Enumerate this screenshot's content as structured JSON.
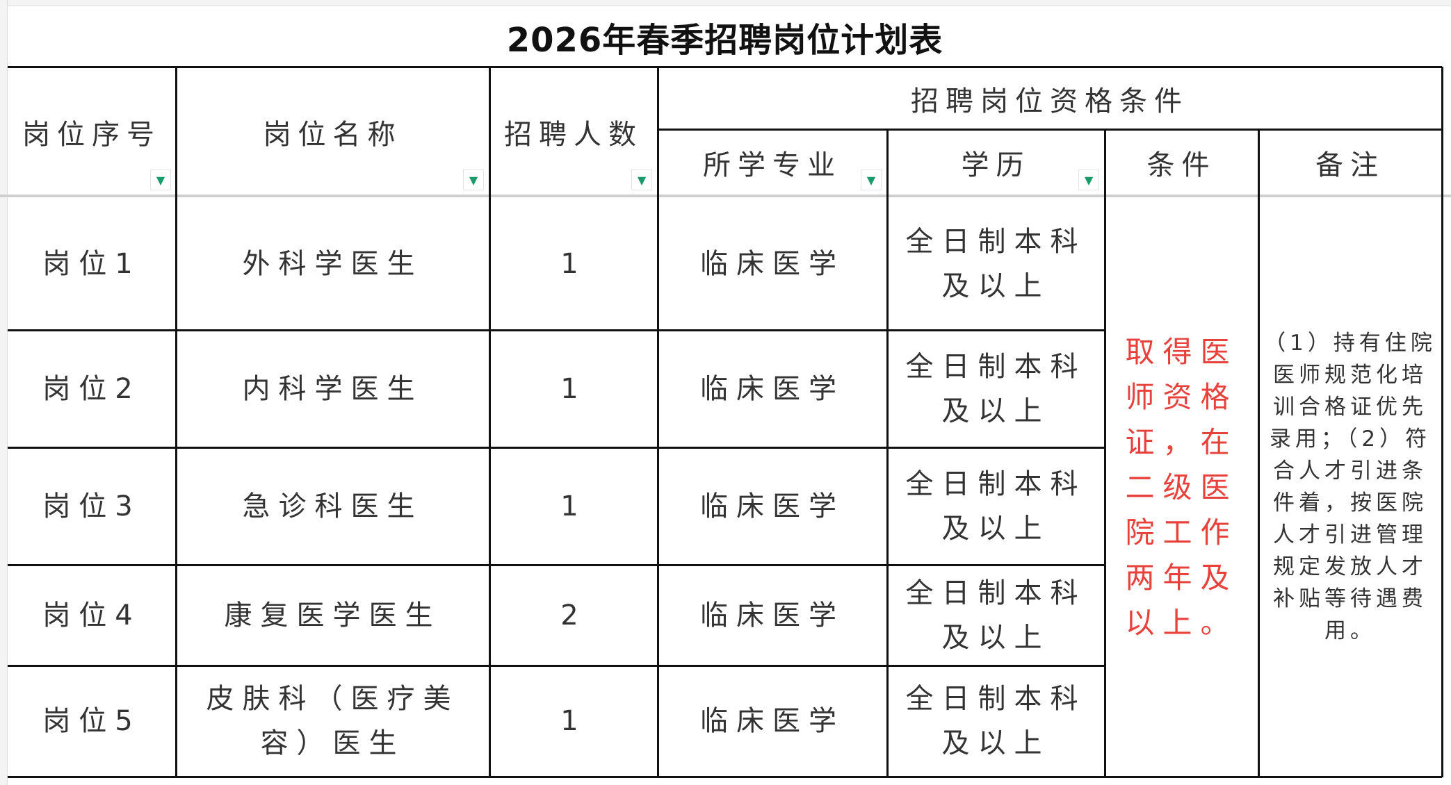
{
  "title": "2026年春季招聘岗位计划表",
  "headers": {
    "post_no": "岗位序号",
    "post_name": "岗位名称",
    "count": "招聘人数",
    "qualification_group": "招聘岗位资格条件",
    "major": "所学专业",
    "education": "学历",
    "condition": "条件",
    "remark": "备注"
  },
  "filter_icon": "dropdown-triangle",
  "rows": [
    {
      "post_no": "岗位1",
      "post_name": "外科学医生",
      "count": "1",
      "major": "临床医学",
      "education": "全日制本科及以上"
    },
    {
      "post_no": "岗位2",
      "post_name": "内科学医生",
      "count": "1",
      "major": "临床医学",
      "education": "全日制本科及以上"
    },
    {
      "post_no": "岗位3",
      "post_name": "急诊科医生",
      "count": "1",
      "major": "临床医学",
      "education": "全日制本科及以上"
    },
    {
      "post_no": "岗位4",
      "post_name": "康复医学医生",
      "count": "2",
      "major": "临床医学",
      "education": "全日制本科及以上"
    },
    {
      "post_no": "岗位5",
      "post_name": "皮肤科（医疗美容）医生",
      "count": "1",
      "major": "临床医学",
      "education": "全日制本科及以上"
    }
  ],
  "condition_text": "取得医师资格证，在二级医院工作两年及以上。",
  "remark_text": "（1）持有住院医师规范化培训合格证优先录用；（2）符合人才引进条件着，按医院人才引进管理规定发放人才补贴等待遇费用。",
  "colors": {
    "condition_text": "#e8403a",
    "filter_icon": "#1a9b6b",
    "border": "#111111"
  }
}
